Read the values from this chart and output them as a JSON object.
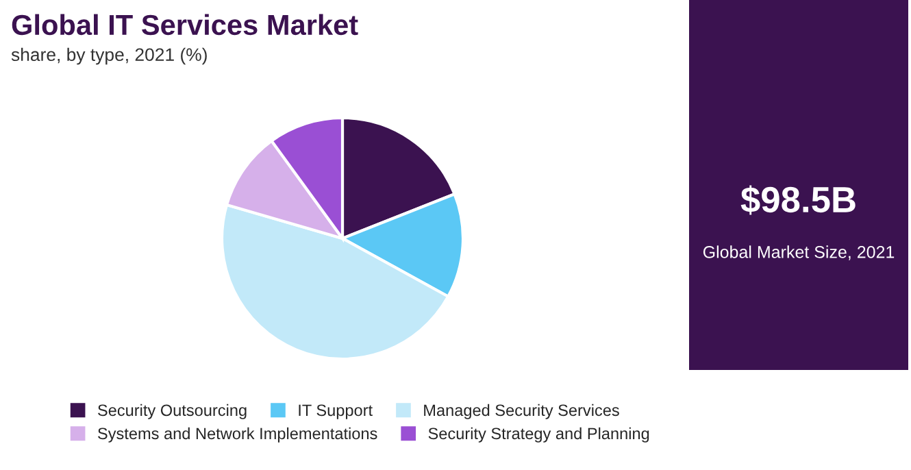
{
  "chart_data": {
    "type": "pie",
    "title": "Global IT Services Market",
    "subtitle": "share, by type, 2021 (%)",
    "categories": [
      "Security Outsourcing",
      "IT Support",
      "Managed Security Services",
      "Systems and Network Implementations",
      "Security Strategy and Planning"
    ],
    "values": [
      19,
      14,
      46.5,
      10.5,
      10
    ],
    "colors": [
      "#3b1250",
      "#5bc8f5",
      "#c2e9f9",
      "#d6b0ea",
      "#9a4fd4"
    ],
    "legend": "bottom",
    "annotations": [
      "$98.5B",
      "Global Market Size, 2021"
    ]
  }
}
